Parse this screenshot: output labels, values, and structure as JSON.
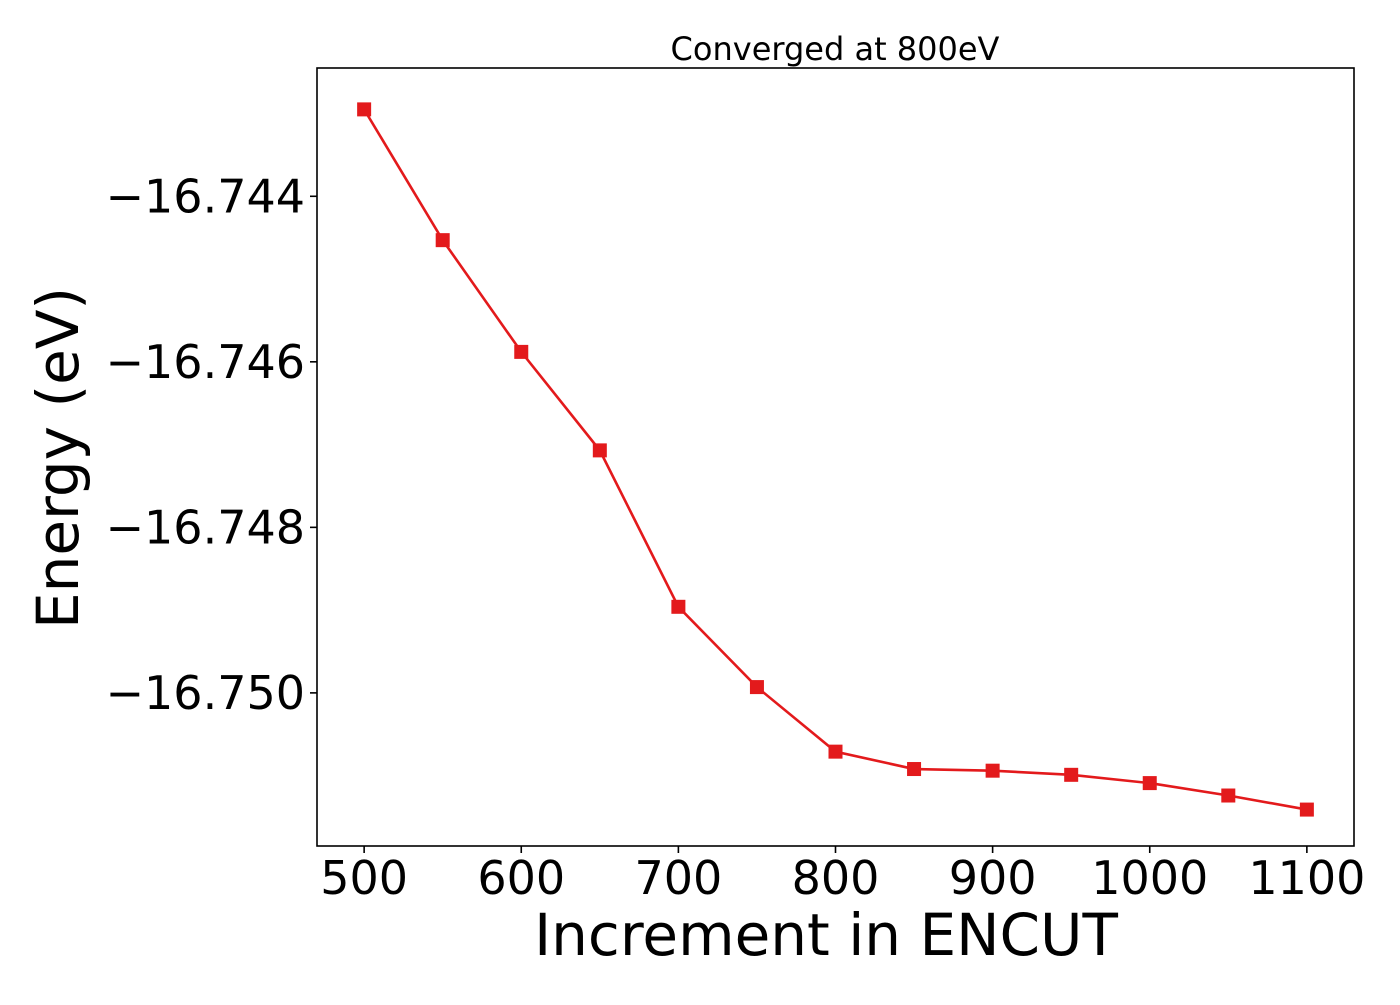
{
  "chart_data": {
    "type": "line",
    "title": "Converged at 800eV",
    "xlabel": "Increment in ENCUT",
    "ylabel": "Energy (eV)",
    "xlim": [
      470,
      1130
    ],
    "ylim": [
      -16.75185,
      -16.74245
    ],
    "x_ticks": [
      500,
      600,
      700,
      800,
      900,
      1000,
      1100
    ],
    "x_tick_labels": [
      "500",
      "600",
      "700",
      "800",
      "900",
      "1000",
      "1100"
    ],
    "y_ticks": [
      -16.744,
      -16.746,
      -16.748,
      -16.75
    ],
    "y_tick_labels": [
      "−16.744",
      "−16.746",
      "−16.748",
      "−16.750"
    ],
    "grid": false,
    "series": [
      {
        "color": "#e31a1c",
        "marker": "square",
        "x": [
          500,
          550,
          600,
          650,
          700,
          750,
          800,
          850,
          900,
          950,
          1000,
          1050,
          1100
        ],
        "y": [
          -16.74295,
          -16.74453,
          -16.74588,
          -16.74707,
          -16.74896,
          -16.74993,
          -16.75071,
          -16.75092,
          -16.75094,
          -16.75099,
          -16.75109,
          -16.75124,
          -16.75141
        ]
      }
    ]
  }
}
